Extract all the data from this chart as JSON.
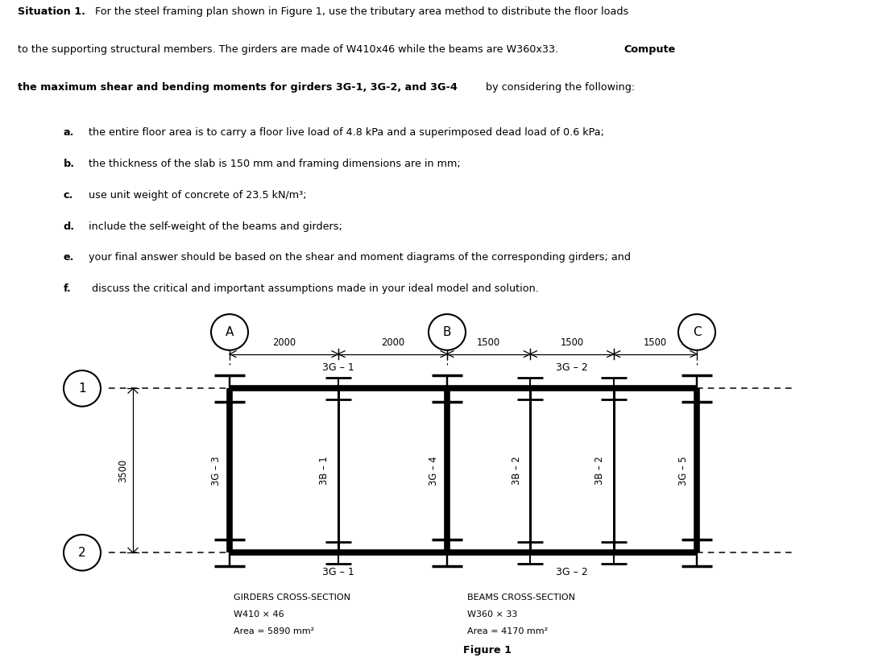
{
  "bg_color": "#ffffff",
  "fig_width": 10.8,
  "fig_height": 8.27,
  "column_labels": [
    "A",
    "B",
    "C"
  ],
  "row_labels": [
    "1",
    "2"
  ],
  "dim_labels": [
    "2000",
    "2000",
    "1500",
    "1500",
    "1500"
  ],
  "left_dim_label": "3500",
  "girder_top_labels": [
    "3G – 1",
    "3G – 2"
  ],
  "girder_bot_labels": [
    "3G – 1",
    "3G – 2"
  ],
  "vertical_labels": [
    "3G – 3",
    "3B – 1",
    "3G – 4",
    "3B – 2",
    "3B – 2",
    "3G – 5"
  ],
  "girder_section_title": "GIRDERS CROSS-SECTION",
  "girder_section_line1": "W410 × 46",
  "girder_section_line2": "Area = 5890 mm²",
  "beam_section_title": "BEAMS CROSS-SECTION",
  "beam_section_line1": "W360 × 33",
  "beam_section_line2": "Area = 4170 mm²",
  "figure_label": "Figure 1"
}
